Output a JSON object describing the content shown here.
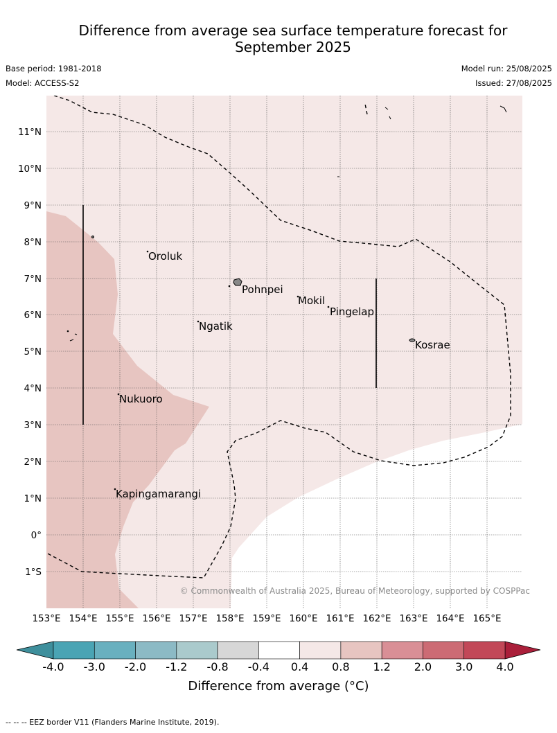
{
  "title_line1": "Difference from average sea surface temperature forecast for",
  "title_line2": "September 2025",
  "base_period": "Base period: 1981-2018",
  "model": "Model: ACCESS-S2",
  "model_run": "Model run: 25/08/2025",
  "issued": "Issued: 27/08/2025",
  "copyright": "© Commonwealth of Australia 2025, Bureau of Meteorology, supported by COSPPac",
  "places": [
    "Oroluk",
    "Pohnpei",
    "Mokil",
    "Pingelap",
    "Ngatik",
    "Kosrae",
    "Nukuoro",
    "Kapingamarangi"
  ],
  "lon_labels": [
    "153°E",
    "154°E",
    "155°E",
    "156°E",
    "157°E",
    "158°E",
    "159°E",
    "160°E",
    "161°E",
    "162°E",
    "163°E",
    "164°E",
    "165°E"
  ],
  "lat_labels": [
    "11°N",
    "10°N",
    "9°N",
    "8°N",
    "7°N",
    "6°N",
    "5°N",
    "4°N",
    "3°N",
    "2°N",
    "1°N",
    "0°",
    "1°S"
  ],
  "colorbar": {
    "tick_labels": [
      "-4.0",
      "-3.0",
      "-2.0",
      "-1.2",
      "-0.8",
      "-0.4",
      "0.4",
      "0.8",
      "1.2",
      "2.0",
      "3.0",
      "4.0"
    ],
    "colors": [
      "#4aa4b4",
      "#69b0bf",
      "#8cbac5",
      "#aacacc",
      "#d7d7d7",
      "#ffffff",
      "#f5e8e7",
      "#e7c5c1",
      "#d98f96",
      "#cc6b74",
      "#c24858"
    ],
    "under_color": "#3e8f9c",
    "over_color": "#aa1f3a",
    "label": "Difference from average (°C)"
  },
  "footnote": "--  --  -- EEZ border V11 (Flanders Marine Institute, 2019)."
}
